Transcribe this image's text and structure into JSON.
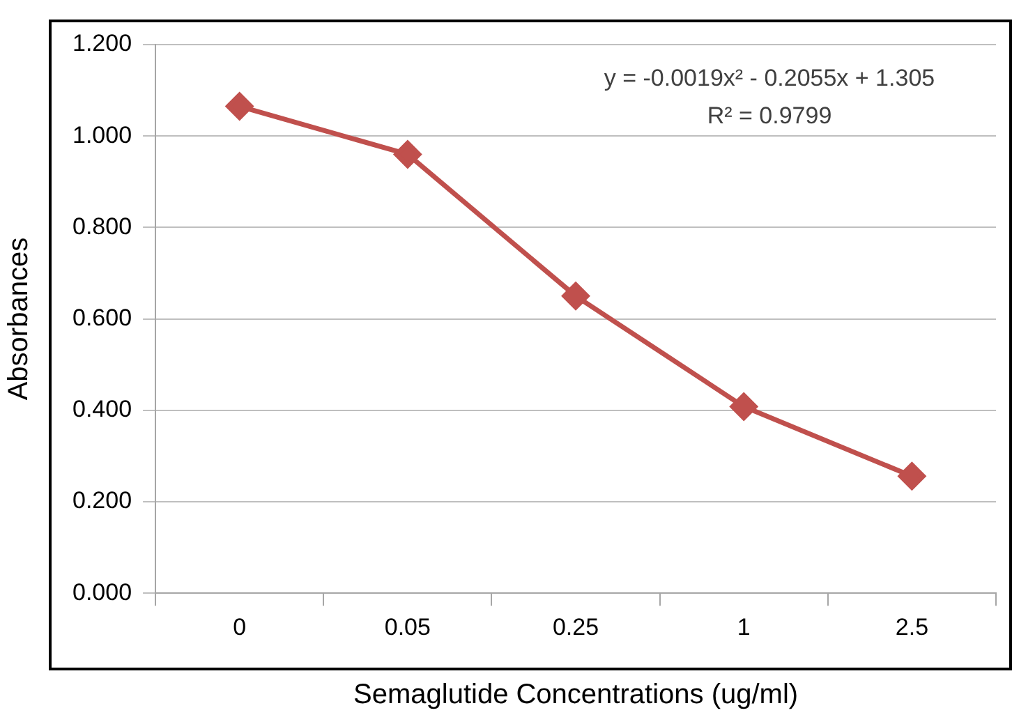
{
  "chart_data": {
    "type": "line",
    "xlabel": "Semaglutide Concentrations (ug/ml)",
    "ylabel": "Absorbances",
    "categories": [
      "0",
      "0.05",
      "0.25",
      "1",
      "2.5"
    ],
    "series": [
      {
        "color": "#c0504d",
        "values": [
          1.065,
          0.96,
          0.65,
          0.408,
          0.256
        ]
      }
    ],
    "ylim": [
      0,
      1.2
    ],
    "yticks": [
      {
        "value": 0,
        "label": "0.000"
      },
      {
        "value": 0.2,
        "label": "0.200"
      },
      {
        "value": 0.4,
        "label": "0.400"
      },
      {
        "value": 0.6,
        "label": "0.600"
      },
      {
        "value": 0.8,
        "label": "0.800"
      },
      {
        "value": 1,
        "label": "1.000"
      },
      {
        "value": 1.2,
        "label": "1.200"
      }
    ],
    "grid": "y",
    "legend": false,
    "marker": "diamond",
    "line_style": "solid",
    "annotations": [
      "y = -0.0019x² - 0.2055x + 1.305",
      "R² = 0.9799"
    ]
  }
}
